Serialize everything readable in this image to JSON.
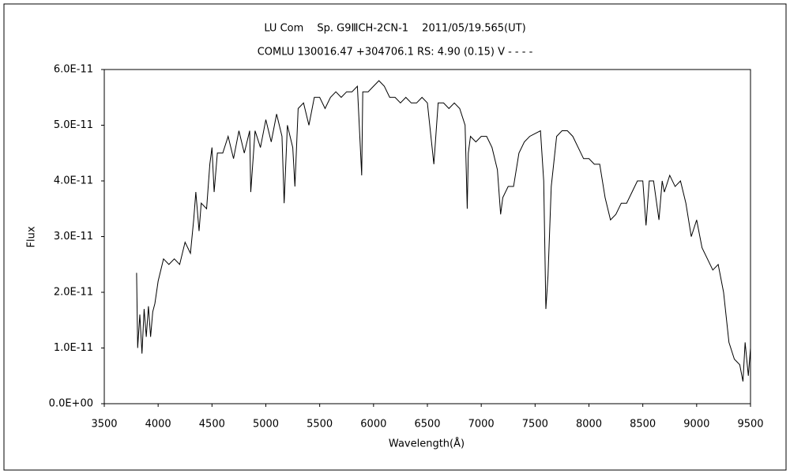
{
  "chart_data": {
    "type": "line",
    "title": "LU Com　 Sp. G9ⅢCH-2CN-1　 2011/05/19.565(UT)",
    "subtitle": "COMLU 130016.47 +304706.1 RS: 4.90 (0.15) V - - - -",
    "x_label": "Wavelength(Å)",
    "y_label": "Flux",
    "xlim": [
      3500,
      9500
    ],
    "xticks": [
      3500,
      4000,
      4500,
      5000,
      5500,
      6000,
      6500,
      7000,
      7500,
      8000,
      8500,
      9000,
      9500
    ],
    "ylim": [
      0,
      6e-11
    ],
    "yticks": [
      {
        "value": 0,
        "label": "0.0E+00"
      },
      {
        "value": 1e-11,
        "label": "1.0E-11"
      },
      {
        "value": 2e-11,
        "label": "2.0E-11"
      },
      {
        "value": 3e-11,
        "label": "3.0E-11"
      },
      {
        "value": 4e-11,
        "label": "4.0E-11"
      },
      {
        "value": 5e-11,
        "label": "5.0E-11"
      },
      {
        "value": 6e-11,
        "label": "6.0E-11"
      }
    ],
    "color": "#000000",
    "x": [
      3800,
      3810,
      3830,
      3850,
      3870,
      3890,
      3910,
      3930,
      3950,
      3970,
      4000,
      4050,
      4100,
      4150,
      4200,
      4250,
      4300,
      4330,
      4350,
      4380,
      4400,
      4450,
      4480,
      4500,
      4520,
      4550,
      4600,
      4650,
      4700,
      4750,
      4800,
      4850,
      4860,
      4900,
      4950,
      5000,
      5050,
      5100,
      5150,
      5170,
      5200,
      5250,
      5270,
      5300,
      5350,
      5400,
      5450,
      5500,
      5550,
      5600,
      5650,
      5700,
      5750,
      5800,
      5850,
      5890,
      5900,
      5950,
      6000,
      6050,
      6100,
      6150,
      6200,
      6250,
      6300,
      6350,
      6400,
      6450,
      6500,
      6560,
      6600,
      6650,
      6700,
      6750,
      6800,
      6850,
      6870,
      6880,
      6900,
      6950,
      7000,
      7050,
      7100,
      7150,
      7180,
      7200,
      7250,
      7300,
      7350,
      7400,
      7450,
      7500,
      7550,
      7580,
      7600,
      7620,
      7650,
      7700,
      7750,
      7800,
      7850,
      7900,
      7950,
      8000,
      8050,
      8100,
      8150,
      8200,
      8250,
      8300,
      8350,
      8400,
      8450,
      8500,
      8530,
      8560,
      8600,
      8650,
      8680,
      8700,
      8750,
      8800,
      8850,
      8900,
      8950,
      9000,
      9050,
      9100,
      9150,
      9200,
      9250,
      9300,
      9350,
      9400,
      9430,
      9450,
      9480,
      9500
    ],
    "values": [
      2.35e-11,
      1e-11,
      1.6e-11,
      9e-12,
      1.7e-11,
      1.2e-11,
      1.75e-11,
      1.2e-11,
      1.65e-11,
      1.8e-11,
      2.2e-11,
      2.6e-11,
      2.5e-11,
      2.6e-11,
      2.5e-11,
      2.9e-11,
      2.7e-11,
      3.3e-11,
      3.8e-11,
      3.1e-11,
      3.6e-11,
      3.5e-11,
      4.3e-11,
      4.6e-11,
      3.8e-11,
      4.5e-11,
      4.5e-11,
      4.8e-11,
      4.4e-11,
      4.9e-11,
      4.5e-11,
      4.9e-11,
      3.8e-11,
      4.9e-11,
      4.6e-11,
      5.1e-11,
      4.7e-11,
      5.2e-11,
      4.8e-11,
      3.6e-11,
      5e-11,
      4.6e-11,
      3.9e-11,
      5.3e-11,
      5.4e-11,
      5e-11,
      5.5e-11,
      5.5e-11,
      5.3e-11,
      5.5e-11,
      5.6e-11,
      5.5e-11,
      5.6e-11,
      5.6e-11,
      5.7e-11,
      4.1e-11,
      5.6e-11,
      5.6e-11,
      5.7e-11,
      5.8e-11,
      5.7e-11,
      5.5e-11,
      5.5e-11,
      5.4e-11,
      5.5e-11,
      5.4e-11,
      5.4e-11,
      5.5e-11,
      5.4e-11,
      4.3e-11,
      5.4e-11,
      5.4e-11,
      5.3e-11,
      5.4e-11,
      5.3e-11,
      5e-11,
      3.5e-11,
      4.5e-11,
      4.8e-11,
      4.7e-11,
      4.8e-11,
      4.8e-11,
      4.6e-11,
      4.2e-11,
      3.4e-11,
      3.7e-11,
      3.9e-11,
      3.9e-11,
      4.5e-11,
      4.7e-11,
      4.8e-11,
      4.85e-11,
      4.9e-11,
      4e-11,
      1.7e-11,
      2.3e-11,
      3.9e-11,
      4.8e-11,
      4.9e-11,
      4.9e-11,
      4.8e-11,
      4.6e-11,
      4.4e-11,
      4.4e-11,
      4.3e-11,
      4.3e-11,
      3.7e-11,
      3.3e-11,
      3.4e-11,
      3.6e-11,
      3.6e-11,
      3.8e-11,
      4e-11,
      4e-11,
      3.2e-11,
      4e-11,
      4e-11,
      3.3e-11,
      4e-11,
      3.8e-11,
      4.1e-11,
      3.9e-11,
      4e-11,
      3.6e-11,
      3e-11,
      3.3e-11,
      2.8e-11,
      2.6e-11,
      2.4e-11,
      2.5e-11,
      2e-11,
      1.1e-11,
      8e-12,
      7e-12,
      4e-12,
      1.1e-11,
      5e-12,
      1e-11
    ]
  }
}
